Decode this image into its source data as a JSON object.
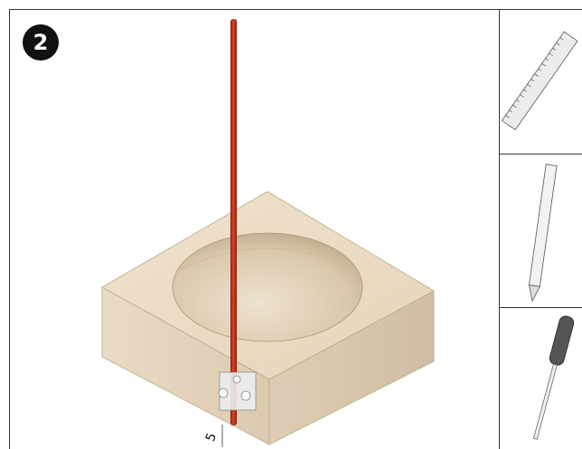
{
  "step": {
    "number": "2"
  },
  "dimension": {
    "label": "5"
  }
}
